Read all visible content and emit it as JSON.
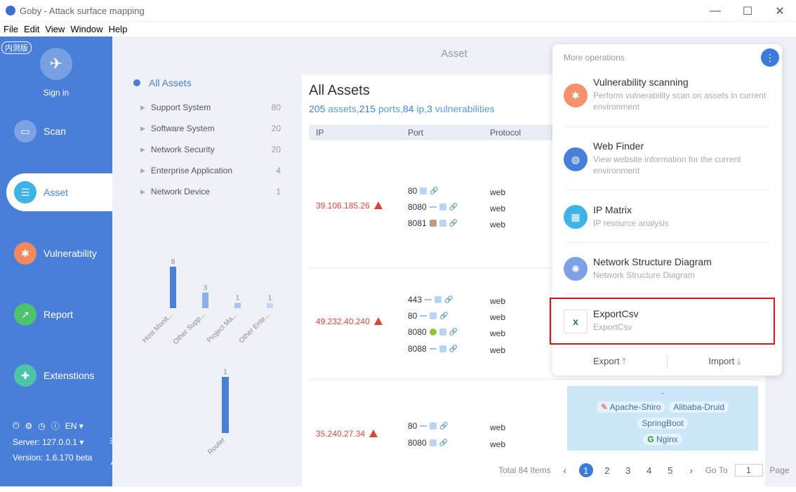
{
  "window": {
    "title": "Goby - Attack surface mapping",
    "minimize": "—",
    "maximize": "☐",
    "close": "✕"
  },
  "menu": [
    "File",
    "Edit",
    "View",
    "Window",
    "Help"
  ],
  "sidebar": {
    "beta": "内测版",
    "signin": "Sign in",
    "items": [
      {
        "label": "Scan",
        "color": "#7ea1e6"
      },
      {
        "label": "Asset",
        "color": "#3db3e6"
      },
      {
        "label": "Vulnerability",
        "color": "#f08a5d"
      },
      {
        "label": "Report",
        "color": "#4cc46e"
      },
      {
        "label": "Extenstions",
        "color": "#4cc4a8"
      }
    ],
    "lang": "EN",
    "server": "Server: 127.0.0.1",
    "version": "Version: 1.6.170 beta"
  },
  "page": {
    "heading": "Asset"
  },
  "tree": {
    "root": "All Assets",
    "items": [
      {
        "label": "Support System",
        "count": "80"
      },
      {
        "label": "Software System",
        "count": "20"
      },
      {
        "label": "Network Security",
        "count": "20"
      },
      {
        "label": "Enterprise Application",
        "count": "4"
      },
      {
        "label": "Network Device",
        "count": "1"
      }
    ]
  },
  "chart_data": [
    {
      "type": "bar",
      "categories": [
        "Host Monit...",
        "Other Supp...",
        "Project Ma...",
        "Other Ente..."
      ],
      "values": [
        8,
        3,
        1,
        1
      ]
    },
    {
      "type": "bar",
      "categories": [
        "Router"
      ],
      "values": [
        1
      ]
    }
  ],
  "assets": {
    "title": "All Assets",
    "assets_count": "205",
    "assets_word": " assets,",
    "ports_count": "215",
    "ports_word": " ports,",
    "ip_count": "84",
    "ip_word": " ip,",
    "vuln_count": "3",
    "vuln_word": " vulnerabilities",
    "columns": [
      "IP",
      "Port",
      "Protocol"
    ],
    "rows": [
      {
        "ip": "39.106.185.26",
        "ports": [
          "80",
          "8080",
          "8081"
        ],
        "protocols": [
          "web",
          "web",
          "web"
        ]
      },
      {
        "ip": "49.232.40.240",
        "ports": [
          "443",
          "80",
          "8080",
          "8088"
        ],
        "protocols": [
          "web",
          "web",
          "web",
          "web"
        ]
      },
      {
        "ip": "35.240.27.34",
        "ports": [
          "80",
          "8080"
        ],
        "protocols": [
          "web",
          "web"
        ]
      }
    ],
    "tags_row1": [
      "Apache-Shiro",
      "Alibaba-Druid"
    ],
    "tags_row2": [
      "SpringBoot"
    ],
    "tags_row3": [
      "Nginx"
    ],
    "tags_dash": "-"
  },
  "pager": {
    "total": "Total 84 Items",
    "pages": [
      "1",
      "2",
      "3",
      "4",
      "5"
    ],
    "goto": "Go To",
    "goto_value": "1",
    "page_word": "Page"
  },
  "operations": {
    "heading": "More operations",
    "items": [
      {
        "title": "Vulnerability scanning",
        "desc": "Perform vulnerability scan on assets in current environment",
        "color": "#f3926d"
      },
      {
        "title": "Web Finder",
        "desc": "View website information for the current environment",
        "color": "#4a7fd9"
      },
      {
        "title": "IP Matrix",
        "desc": "IP resource analysis",
        "color": "#3db3e6"
      },
      {
        "title": "Network Structure Diagram",
        "desc": "Network Structure Diagram",
        "color": "#7ea1e6"
      },
      {
        "title": "ExportCsv",
        "desc": "ExportCsv",
        "color": "#1e7a45"
      }
    ],
    "export": "Export",
    "import": "Import"
  }
}
